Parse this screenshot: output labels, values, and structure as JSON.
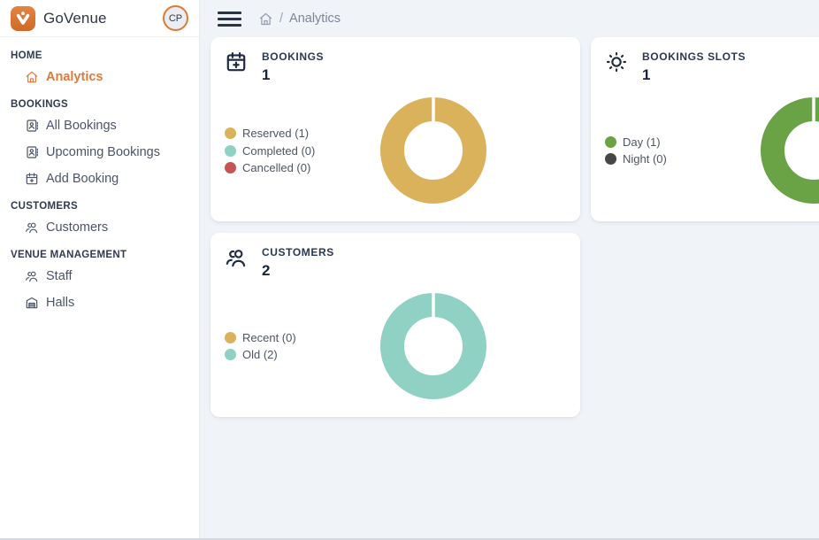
{
  "app": {
    "name": "GoVenue",
    "avatar_initials": "CP"
  },
  "colors": {
    "accent_orange": "#DE7B35",
    "background": "#F0F3F8",
    "card_background": "#FFFFFF",
    "gold": "#D9B25B",
    "teal": "#8FD1C2",
    "red": "#C75454",
    "green": "#69A345",
    "night_gray": "#474747"
  },
  "sidebar": {
    "sections": [
      {
        "label": "HOME",
        "items": [
          {
            "label": "Analytics",
            "icon": "home-icon",
            "active": true
          }
        ]
      },
      {
        "label": "BOOKINGS",
        "items": [
          {
            "label": "All Bookings",
            "icon": "address-book-icon",
            "active": false
          },
          {
            "label": "Upcoming Bookings",
            "icon": "address-book-icon",
            "active": false
          },
          {
            "label": "Add Booking",
            "icon": "calendar-plus-icon",
            "active": false
          }
        ]
      },
      {
        "label": "CUSTOMERS",
        "items": [
          {
            "label": "Customers",
            "icon": "users-icon",
            "active": false
          }
        ]
      },
      {
        "label": "VENUE MANAGEMENT",
        "items": [
          {
            "label": "Staff",
            "icon": "users-icon",
            "active": false
          },
          {
            "label": "Halls",
            "icon": "hall-icon",
            "active": false
          }
        ]
      }
    ]
  },
  "breadcrumb": {
    "separator": "/",
    "current": "Analytics"
  },
  "chart_data": [
    {
      "type": "pie",
      "title": "BOOKINGS",
      "total": "1",
      "icon": "calendar-plus-icon",
      "legend_position": "left",
      "segments": [
        {
          "label": "Reserved",
          "value": 1,
          "color": "#D9B25B"
        },
        {
          "label": "Completed",
          "value": 0,
          "color": "#8FD1C2"
        },
        {
          "label": "Cancelled",
          "value": 0,
          "color": "#C75454"
        }
      ]
    },
    {
      "type": "pie",
      "title": "BOOKINGS SLOTS",
      "total": "1",
      "icon": "sun-icon",
      "legend_position": "left",
      "segments": [
        {
          "label": "Day",
          "value": 1,
          "color": "#69A345"
        },
        {
          "label": "Night",
          "value": 0,
          "color": "#474747"
        }
      ]
    },
    {
      "type": "pie",
      "title": "CUSTOMERS",
      "total": "2",
      "icon": "users-icon",
      "legend_position": "left",
      "segments": [
        {
          "label": "Recent",
          "value": 0,
          "color": "#D9B25B"
        },
        {
          "label": "Old",
          "value": 2,
          "color": "#8FD1C2"
        }
      ]
    }
  ]
}
